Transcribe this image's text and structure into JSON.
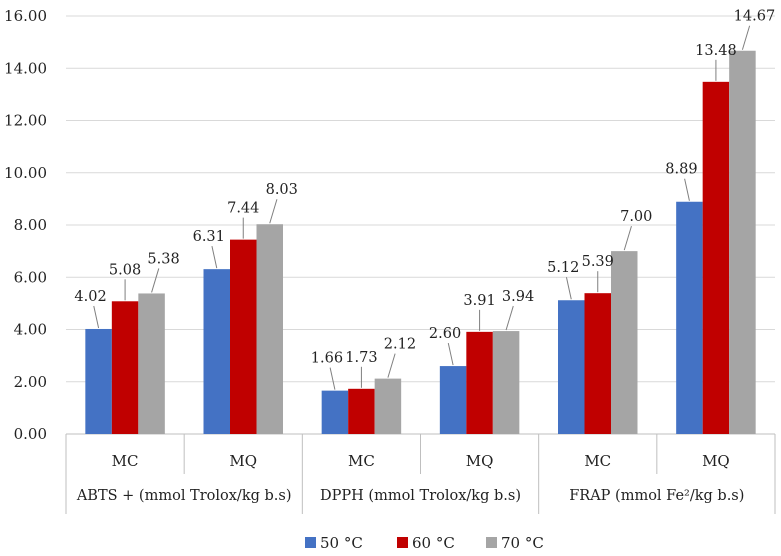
{
  "chart_data": {
    "type": "bar",
    "title": "",
    "xlabel": "",
    "ylabel": "",
    "ylim": [
      0,
      16
    ],
    "yticks": [
      "0.00",
      "2.00",
      "4.00",
      "6.00",
      "8.00",
      "10.00",
      "12.00",
      "14.00",
      "16.00"
    ],
    "grid": true,
    "legend_position": "bottom",
    "groups": [
      {
        "label": "ABTS + (mmol Trolox/kg b.s)",
        "subcategories": [
          "MC",
          "MQ"
        ]
      },
      {
        "label": "DPPH (mmol Trolox/kg b.s)",
        "subcategories": [
          "MC",
          "MQ"
        ]
      },
      {
        "label": "FRAP (mmol Fe²/kg b.s)",
        "subcategories": [
          "MC",
          "MQ"
        ]
      }
    ],
    "categories": [
      "MC",
      "MQ",
      "MC",
      "MQ",
      "MC",
      "MQ"
    ],
    "series": [
      {
        "name": "50 °C",
        "color": "#4472c4",
        "values": [
          4.02,
          6.31,
          1.66,
          2.6,
          5.12,
          8.89
        ],
        "labels": [
          "4.02",
          "6.31",
          "1.66",
          "2.60",
          "5.12",
          "8.89"
        ]
      },
      {
        "name": "60 °C",
        "color": "#c00000",
        "values": [
          5.08,
          7.44,
          1.73,
          3.91,
          5.39,
          13.48
        ],
        "labels": [
          "5.08",
          "7.44",
          "1.73",
          "3.91",
          "5.39",
          "13.48"
        ]
      },
      {
        "name": "70 °C",
        "color": "#a5a5a5",
        "values": [
          5.38,
          8.03,
          2.12,
          3.94,
          7.0,
          14.67
        ],
        "labels": [
          "5.38",
          "8.03",
          "2.12",
          "3.94",
          "7.00",
          "14.67"
        ]
      }
    ]
  }
}
